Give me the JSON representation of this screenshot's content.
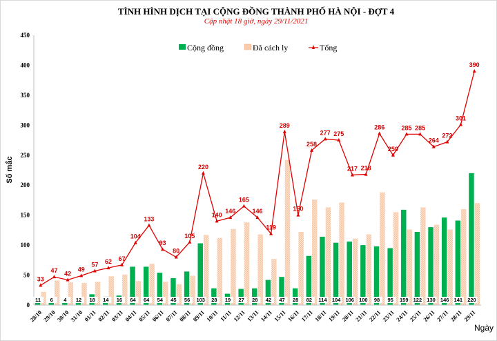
{
  "chart_data": {
    "type": "bar",
    "title": "TÌNH HÌNH DỊCH TẠI CỘNG ĐỒNG THÀNH PHỐ HÀ NỘI - ĐỢT 4",
    "subtitle": "Cập nhật 18 giờ, ngày 29/11/2021",
    "xlabel": "Ngày",
    "ylabel": "Số mắc",
    "ylim": [
      0,
      450
    ],
    "yticks": [
      0,
      50,
      100,
      150,
      200,
      250,
      300,
      350,
      400,
      450
    ],
    "legend_position": "top",
    "grid": false,
    "categories": [
      "28/10",
      "29/10",
      "30/10",
      "31/10",
      "01/11",
      "02/11",
      "03/11",
      "04/11",
      "05/11",
      "06/11",
      "07/11",
      "08/11",
      "09/11",
      "10/11",
      "11/11",
      "12/11",
      "13/11",
      "14/11",
      "15/11",
      "16/11",
      "17/11",
      "18/11",
      "19/11",
      "20/11",
      "21/11",
      "22/11",
      "23/11",
      "24/11",
      "25/11",
      "26/11",
      "27/11",
      "28/11",
      "29/11"
    ],
    "series": [
      {
        "name": "Cộng đồng",
        "type": "bar",
        "color": "#00b050",
        "values": [
          11,
          6,
          4,
          12,
          18,
          14,
          16,
          64,
          64,
          54,
          45,
          56,
          103,
          28,
          19,
          27,
          28,
          42,
          47,
          28,
          82,
          114,
          104,
          106,
          100,
          98,
          95,
          159,
          122,
          130,
          146,
          141,
          220
        ]
      },
      {
        "name": "Đã cách ly",
        "type": "bar",
        "color": "#f8cbad",
        "values": [
          22,
          41,
          38,
          37,
          39,
          48,
          51,
          40,
          69,
          39,
          35,
          49,
          117,
          112,
          127,
          138,
          118,
          77,
          242,
          122,
          176,
          163,
          171,
          111,
          118,
          188,
          155,
          126,
          163,
          134,
          126,
          160,
          170
        ]
      },
      {
        "name": "Tổng",
        "type": "line",
        "color": "#e00000",
        "values": [
          33,
          47,
          42,
          49,
          57,
          62,
          67,
          104,
          133,
          93,
          80,
          105,
          220,
          140,
          146,
          165,
          146,
          119,
          289,
          150,
          258,
          277,
          275,
          217,
          218,
          286,
          250,
          285,
          285,
          264,
          272,
          301,
          390
        ]
      }
    ]
  }
}
